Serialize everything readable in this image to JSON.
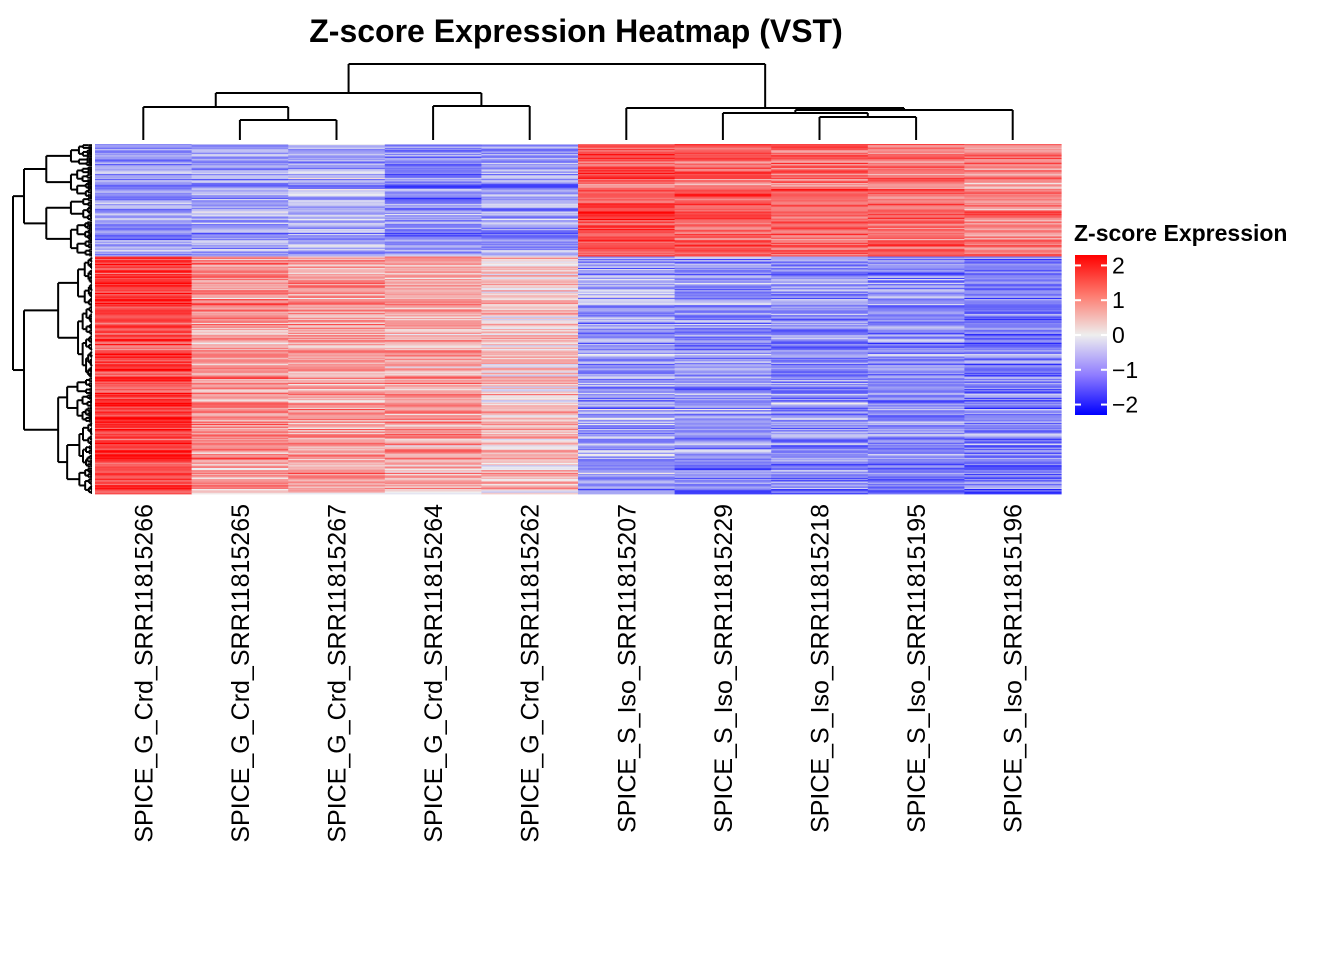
{
  "chart_data": {
    "type": "heatmap",
    "title": "Z-score Expression Heatmap (VST)",
    "columns": [
      "SPICE_G_Crd_SRR11815266",
      "SPICE_G_Crd_SRR11815265",
      "SPICE_G_Crd_SRR11815267",
      "SPICE_G_Crd_SRR11815264",
      "SPICE_G_Crd_SRR11815262",
      "SPICE_S_Iso_SRR11815207",
      "SPICE_S_Iso_SRR11815229",
      "SPICE_S_Iso_SRR11815218",
      "SPICE_S_Iso_SRR11815195",
      "SPICE_S_Iso_SRR11815196"
    ],
    "row_clusters": [
      {
        "name": "top",
        "row_share": 0.32,
        "column_means": [
          -0.9,
          -0.8,
          -0.7,
          -1.0,
          -0.9,
          1.5,
          1.3,
          1.3,
          1.2,
          1.0
        ]
      },
      {
        "name": "bottom",
        "row_share": 0.68,
        "column_means": [
          1.7,
          0.9,
          0.8,
          0.7,
          0.4,
          -0.8,
          -0.9,
          -0.9,
          -1.0,
          -1.1
        ]
      }
    ],
    "legend": {
      "title": "Z-score Expression",
      "ticks": [
        "2",
        "1",
        "0",
        "−1",
        "−2"
      ],
      "range": [
        -2.3,
        2.3
      ],
      "colors": {
        "low": "#0000ff",
        "mid": "#f2f2f2",
        "high": "#ff0000"
      }
    },
    "column_dendrogram": "((G_Crd_266,(G_Crd_265,G_Crd_267)),(G_Crd_264,G_Crd_262)),(S_Iso_207,(S_Iso_229,(S_Iso_218,S_Iso_195)),S_Iso_196)",
    "row_dendrogram": "shown at left, rows clustered into two major groups"
  }
}
